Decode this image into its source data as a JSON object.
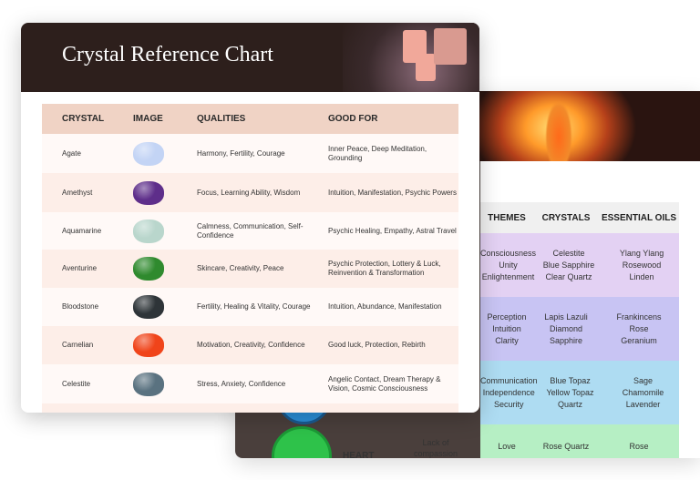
{
  "front": {
    "title": "Crystal Reference Chart",
    "columns": [
      "CRYSTAL",
      "IMAGE",
      "QUALITIES",
      "GOOD FOR"
    ],
    "rows": [
      {
        "crystal": "Agate",
        "color": "#c3d4f5",
        "qualities": "Harmony, Fertility, Courage",
        "good_for": "Inner Peace, Deep Meditation, Grounding"
      },
      {
        "crystal": "Amethyst",
        "color": "#5e2e8a",
        "qualities": "Focus, Learning Ability, Wisdom",
        "good_for": "Intuition, Manifestation, Psychic Powers"
      },
      {
        "crystal": "Aquamarine",
        "color": "#b9d6cc",
        "qualities": "Calmness, Communication, Self-Confidence",
        "good_for": "Psychic Healing, Empathy, Astral Travel"
      },
      {
        "crystal": "Aventurine",
        "color": "#2f8a2e",
        "qualities": "Skincare, Creativity, Peace",
        "good_for": "Psychic Protection, Lottery & Luck, Reinvention & Transformation"
      },
      {
        "crystal": "Bloodstone",
        "color": "#2e3438",
        "qualities": "Fertility, Healing & Vitality, Courage",
        "good_for": "Intuition, Abundance, Manifestation"
      },
      {
        "crystal": "Carnelian",
        "color": "#f0441a",
        "qualities": "Motivation, Creativity, Confidence",
        "good_for": "Good luck, Protection, Rebirth"
      },
      {
        "crystal": "Celestite",
        "color": "#5a7280",
        "qualities": "Stress, Anxiety, Confidence",
        "good_for": "Angelic Contact, Dream Therapy & Vision, Cosmic Consciousness"
      }
    ]
  },
  "back": {
    "columns": [
      "THEMES",
      "CRYSTALS",
      "ESSENTIAL OILS"
    ],
    "rows": [
      {
        "color": "#e3d1f3",
        "themes": "Consciousness\nUnity\nEnlightenment",
        "crystals": "Celestite\nBlue Sapphire\nClear Quartz",
        "oils": "Ylang Ylang\nRosewood\nLinden"
      },
      {
        "color": "#c8c4f3",
        "themes": "Perception\nIntuition\nClarity",
        "crystals": "Lapis Lazuli\nDiamond\nSapphire",
        "oils": "Frankincens\nRose\nGeranium"
      },
      {
        "color": "#aedcf2",
        "themes": "Communication\nIndependence\nSecurity",
        "crystals": "Blue Topaz\nYellow Topaz\nQuartz",
        "oils": "Sage\nChamomile\nLavender"
      },
      {
        "color": "#b6efc4",
        "themes": "Love",
        "crystals": "Rose Quartz",
        "oils": "Rose"
      }
    ],
    "heart_label": "HEART",
    "heart_blockage": "Lack of compassion"
  }
}
